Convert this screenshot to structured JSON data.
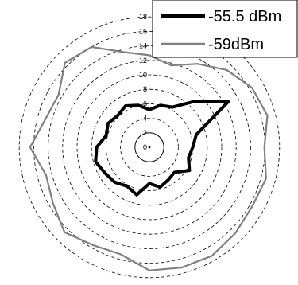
{
  "chart_data": {
    "type": "polar",
    "title": "",
    "radial_axis": {
      "min": 0,
      "max": 18,
      "step": 2,
      "tick_labels": [
        "0",
        "2",
        "4",
        "6",
        "8",
        "10",
        "12",
        "14",
        "16",
        "18"
      ]
    },
    "grid": true,
    "legend_position": "top-right",
    "angles_deg": [
      0,
      15,
      30,
      45,
      60,
      75,
      90,
      105,
      120,
      135,
      150,
      165,
      180,
      195,
      210,
      225,
      240,
      255,
      270,
      285,
      300,
      315,
      330,
      345
    ],
    "series": [
      {
        "name": "-55.5 dBm",
        "color": "#000000",
        "line": "thick",
        "values": [
          5.2,
          6.0,
          6.4,
          9.0,
          12.6,
          6.7,
          6.0,
          5.6,
          6.4,
          4.9,
          5.2,
          5.7,
          5.0,
          6.8,
          6.2,
          6.8,
          7.1,
          7.7,
          7.3,
          6.2,
          6.6,
          6.2,
          6.6,
          6.0
        ]
      },
      {
        "name": "-59dBm",
        "color": "#808080",
        "line": "thin",
        "values": [
          12.7,
          11.7,
          13.3,
          15.1,
          16.4,
          16.9,
          15.9,
          16.7,
          16.4,
          16.8,
          17.3,
          17.2,
          17.0,
          15.3,
          15.6,
          16.6,
          15.4,
          14.8,
          16.5,
          14.9,
          14.5,
          16.5,
          16.0,
          13.6
        ]
      }
    ]
  }
}
